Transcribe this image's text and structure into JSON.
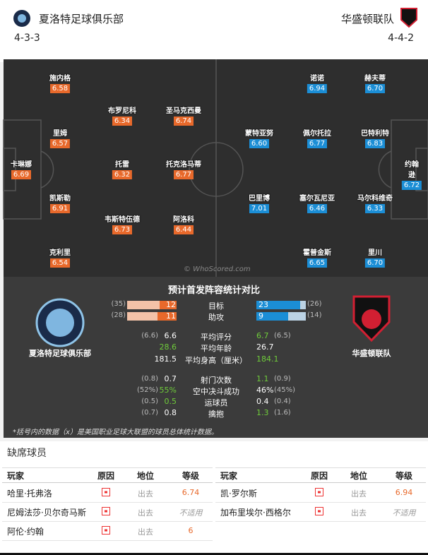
{
  "header": {
    "home": {
      "name": "夏洛特足球俱乐部",
      "formation": "4-3-3"
    },
    "away": {
      "name": "华盛顿联队",
      "formation": "4-4-2"
    }
  },
  "pitch": {
    "home": [
      {
        "name": "施内格",
        "rating": "6.58"
      },
      {
        "name": "布罗尼科",
        "rating": "6.34"
      },
      {
        "name": "圣马克西曼",
        "rating": "6.74"
      },
      {
        "name": "里姆",
        "rating": "6.57"
      },
      {
        "name": "卡琳娜",
        "rating": "6.69"
      },
      {
        "name": "托雷",
        "rating": "6.32"
      },
      {
        "name": "托克洛马蒂",
        "rating": "6.77"
      },
      {
        "name": "凯斯勒",
        "rating": "6.91"
      },
      {
        "name": "韦斯特伍德",
        "rating": "6.73"
      },
      {
        "name": "阿洛科",
        "rating": "6.44"
      },
      {
        "name": "克利里",
        "rating": "6.54"
      }
    ],
    "away": [
      {
        "name": "诺诺",
        "rating": "6.94"
      },
      {
        "name": "赫夫蒂",
        "rating": "6.70"
      },
      {
        "name": "蒙特亚努",
        "rating": "6.60"
      },
      {
        "name": "佩尔托拉",
        "rating": "6.77"
      },
      {
        "name": "巴特利特",
        "rating": "6.83"
      },
      {
        "name": "约翰逊",
        "rating": "6.72"
      },
      {
        "name": "巴里博",
        "rating": "7.01"
      },
      {
        "name": "塞尔瓦尼亚",
        "rating": "6.46"
      },
      {
        "name": "马尔科维奇",
        "rating": "6.33"
      },
      {
        "name": "霍普金斯",
        "rating": "6.65"
      },
      {
        "name": "里川",
        "rating": "6.70"
      }
    ],
    "watermark": "© WhoScored.com"
  },
  "comparison": {
    "title": "预计首发阵容统计对比",
    "home_name": "夏洛特足球俱乐部",
    "away_name": "华盛顿联队",
    "bars": [
      {
        "label": "目标",
        "home": 12,
        "home_league": {
          "value": 35,
          "label": "(35)"
        },
        "away": 23,
        "away_league": {
          "value": 26,
          "label": "(26)"
        }
      },
      {
        "label": "助攻",
        "home": 11,
        "home_league": {
          "value": 28,
          "label": "(28)"
        },
        "away": 9,
        "away_league": {
          "value": 14,
          "label": "(14)"
        }
      }
    ],
    "rows": [
      {
        "label": "平均评分",
        "home": "6.6",
        "home_league": "(6.6)",
        "away": "6.7",
        "away_league": "(6.5)",
        "better": "away"
      },
      {
        "label": "平均年龄",
        "home": "28.6",
        "away": "26.7",
        "better": "home"
      },
      {
        "label": "平均身高（厘米）",
        "home": "181.5",
        "away": "184.1",
        "better": "away"
      },
      {
        "label": "射门次数",
        "home": "0.7",
        "home_league": "(0.8)",
        "away": "1.1",
        "away_league": "(0.9)",
        "better": "away"
      },
      {
        "label": "空中决斗成功",
        "home": "55%",
        "home_league": "(52%)",
        "away": "46%",
        "away_league": "(45%)",
        "better": "home"
      },
      {
        "label": "运球员",
        "home": "0.5",
        "home_league": "(0.5)",
        "away": "0.4",
        "away_league": "(0.4)",
        "better": "home"
      },
      {
        "label": "擒抱",
        "home": "0.8",
        "home_league": "(0.7)",
        "away": "1.3",
        "away_league": "(1.6)",
        "better": "away"
      }
    ],
    "footnote": "*括号内的数据（x）是美国职业足球大联盟的球员总体统计数据。"
  },
  "absent": {
    "title": "缺席球员",
    "columns": [
      "玩家",
      "原因",
      "地位",
      "等级"
    ],
    "home": [
      {
        "player": "哈里·托弗洛",
        "status": "出去",
        "rating": "6.74"
      },
      {
        "player": "尼姆法莎·贝尔奇马斯",
        "status": "出去",
        "rating": "不适用"
      },
      {
        "player": "阿伦·约翰",
        "status": "出去",
        "rating": "6"
      }
    ],
    "away": [
      {
        "player": "凯·罗尔斯",
        "status": "出去",
        "rating": "6.94"
      },
      {
        "player": "加布里埃尔·西格尔",
        "status": "出去",
        "rating": "不适用"
      }
    ]
  }
}
